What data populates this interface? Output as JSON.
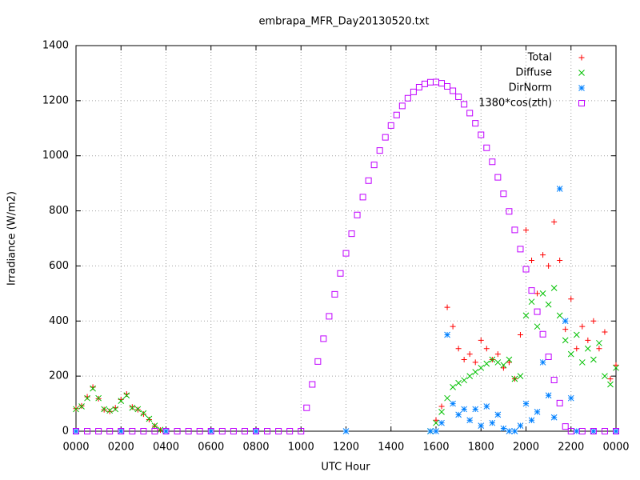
{
  "chart_data": {
    "type": "scatter",
    "title": "embrapa_MFR_Day20130520.txt",
    "x_label": "UTC Hour",
    "y_label": "Irradiance (W/m2)",
    "xlim": [
      0,
      24
    ],
    "ylim": [
      0,
      1400
    ],
    "xticks": [
      {
        "value": 0,
        "label": "0000"
      },
      {
        "value": 2,
        "label": "0200"
      },
      {
        "value": 4,
        "label": "0400"
      },
      {
        "value": 6,
        "label": "0600"
      },
      {
        "value": 8,
        "label": "0800"
      },
      {
        "value": 10,
        "label": "1000"
      },
      {
        "value": 12,
        "label": "1200"
      },
      {
        "value": 14,
        "label": "1400"
      },
      {
        "value": 16,
        "label": "1600"
      },
      {
        "value": 18,
        "label": "1800"
      },
      {
        "value": 20,
        "label": "2000"
      },
      {
        "value": 22,
        "label": "2200"
      },
      {
        "value": 24,
        "label": "0000"
      }
    ],
    "yticks": [
      0,
      200,
      400,
      600,
      800,
      1000,
      1200,
      1400
    ],
    "grid": true,
    "legend": "top-right",
    "series": [
      {
        "name": "Total",
        "color": "#ff0000",
        "marker": "plus",
        "x": [
          0,
          0.25,
          0.5,
          0.75,
          1,
          1.25,
          1.5,
          1.75,
          2,
          2.25,
          2.5,
          2.75,
          3,
          3.25,
          3.5,
          3.75,
          15.75,
          16,
          16.25,
          16.5,
          16.75,
          17,
          17.25,
          17.5,
          17.75,
          18,
          18.25,
          18.5,
          18.75,
          19,
          19.25,
          19.5,
          19.75,
          20,
          20.25,
          20.5,
          20.75,
          21,
          21.25,
          21.5,
          21.75,
          22,
          22.25,
          22.5,
          22.75,
          23,
          23.25,
          23.5,
          23.75,
          24
        ],
        "values": [
          82,
          92,
          125,
          160,
          118,
          78,
          72,
          85,
          115,
          135,
          88,
          78,
          62,
          42,
          18,
          4,
          0,
          40,
          90,
          450,
          380,
          300,
          260,
          280,
          250,
          330,
          300,
          260,
          280,
          230,
          250,
          190,
          350,
          730,
          620,
          500,
          640,
          600,
          760,
          620,
          370,
          480,
          300,
          380,
          330,
          400,
          300,
          360,
          190,
          240
        ]
      },
      {
        "name": "Diffuse",
        "color": "#00c000",
        "marker": "cross",
        "x": [
          0,
          0.25,
          0.5,
          0.75,
          1,
          1.25,
          1.5,
          1.75,
          2,
          2.25,
          2.5,
          2.75,
          3,
          3.25,
          3.5,
          3.75,
          15.75,
          16,
          16.25,
          16.5,
          16.75,
          17,
          17.25,
          17.5,
          17.75,
          18,
          18.25,
          18.5,
          18.75,
          19,
          19.25,
          19.5,
          19.75,
          20,
          20.25,
          20.5,
          20.75,
          21,
          21.25,
          21.5,
          21.75,
          22,
          22.25,
          22.5,
          22.75,
          23,
          23.25,
          23.5,
          23.75,
          24
        ],
        "values": [
          80,
          90,
          120,
          155,
          120,
          80,
          75,
          80,
          110,
          130,
          85,
          80,
          65,
          45,
          20,
          5,
          0,
          30,
          70,
          120,
          160,
          175,
          185,
          200,
          215,
          230,
          245,
          260,
          250,
          240,
          260,
          190,
          200,
          420,
          470,
          380,
          500,
          460,
          520,
          420,
          330,
          280,
          350,
          250,
          300,
          260,
          320,
          200,
          170,
          230
        ]
      },
      {
        "name": "DirNorm",
        "color": "#0080ff",
        "marker": "star",
        "x": [
          0,
          2,
          4,
          6,
          8,
          12,
          15.75,
          16,
          16.25,
          16.5,
          16.75,
          17,
          17.25,
          17.5,
          17.75,
          18,
          18.25,
          18.5,
          18.75,
          19,
          19.25,
          19.5,
          19.75,
          20,
          20.25,
          20.5,
          20.75,
          21,
          21.25,
          21.5,
          21.75,
          22,
          22.25,
          23,
          24
        ],
        "values": [
          0,
          0,
          0,
          0,
          0,
          0,
          0,
          0,
          30,
          350,
          100,
          60,
          80,
          40,
          80,
          20,
          90,
          30,
          60,
          10,
          0,
          0,
          20,
          100,
          40,
          70,
          250,
          130,
          50,
          880,
          400,
          120,
          0,
          0,
          0
        ]
      },
      {
        "name": "1380*cos(zth)",
        "color": "#c000ff",
        "marker": "square",
        "x": [
          0,
          0.5,
          1,
          1.5,
          2,
          2.5,
          3,
          3.5,
          4,
          4.5,
          5,
          5.5,
          6,
          6.5,
          7,
          7.5,
          8,
          8.5,
          9,
          9.5,
          10,
          10.25,
          10.5,
          10.75,
          11,
          11.25,
          11.5,
          11.75,
          12,
          12.25,
          12.5,
          12.75,
          13,
          13.25,
          13.5,
          13.75,
          14,
          14.25,
          14.5,
          14.75,
          15,
          15.25,
          15.5,
          15.75,
          16,
          16.25,
          16.5,
          16.75,
          17,
          17.25,
          17.5,
          17.75,
          18,
          18.25,
          18.5,
          18.75,
          19,
          19.25,
          19.5,
          19.75,
          20,
          20.25,
          20.5,
          20.75,
          21,
          21.25,
          21.5,
          21.75,
          22,
          22.5,
          23,
          23.5,
          24
        ],
        "values": [
          0,
          0,
          0,
          0,
          0,
          0,
          0,
          0,
          0,
          0,
          0,
          0,
          0,
          0,
          0,
          0,
          0,
          0,
          0,
          0,
          0,
          85,
          170,
          253,
          336,
          417,
          497,
          573,
          646,
          717,
          785,
          850,
          910,
          967,
          1019,
          1067,
          1110,
          1148,
          1181,
          1209,
          1232,
          1249,
          1261,
          1267,
          1268,
          1263,
          1252,
          1236,
          1214,
          1187,
          1155,
          1118,
          1076,
          1029,
          978,
          922,
          862,
          798,
          731,
          661,
          588,
          511,
          434,
          352,
          270,
          186,
          102,
          17,
          0,
          0,
          0,
          0,
          0
        ]
      }
    ]
  }
}
